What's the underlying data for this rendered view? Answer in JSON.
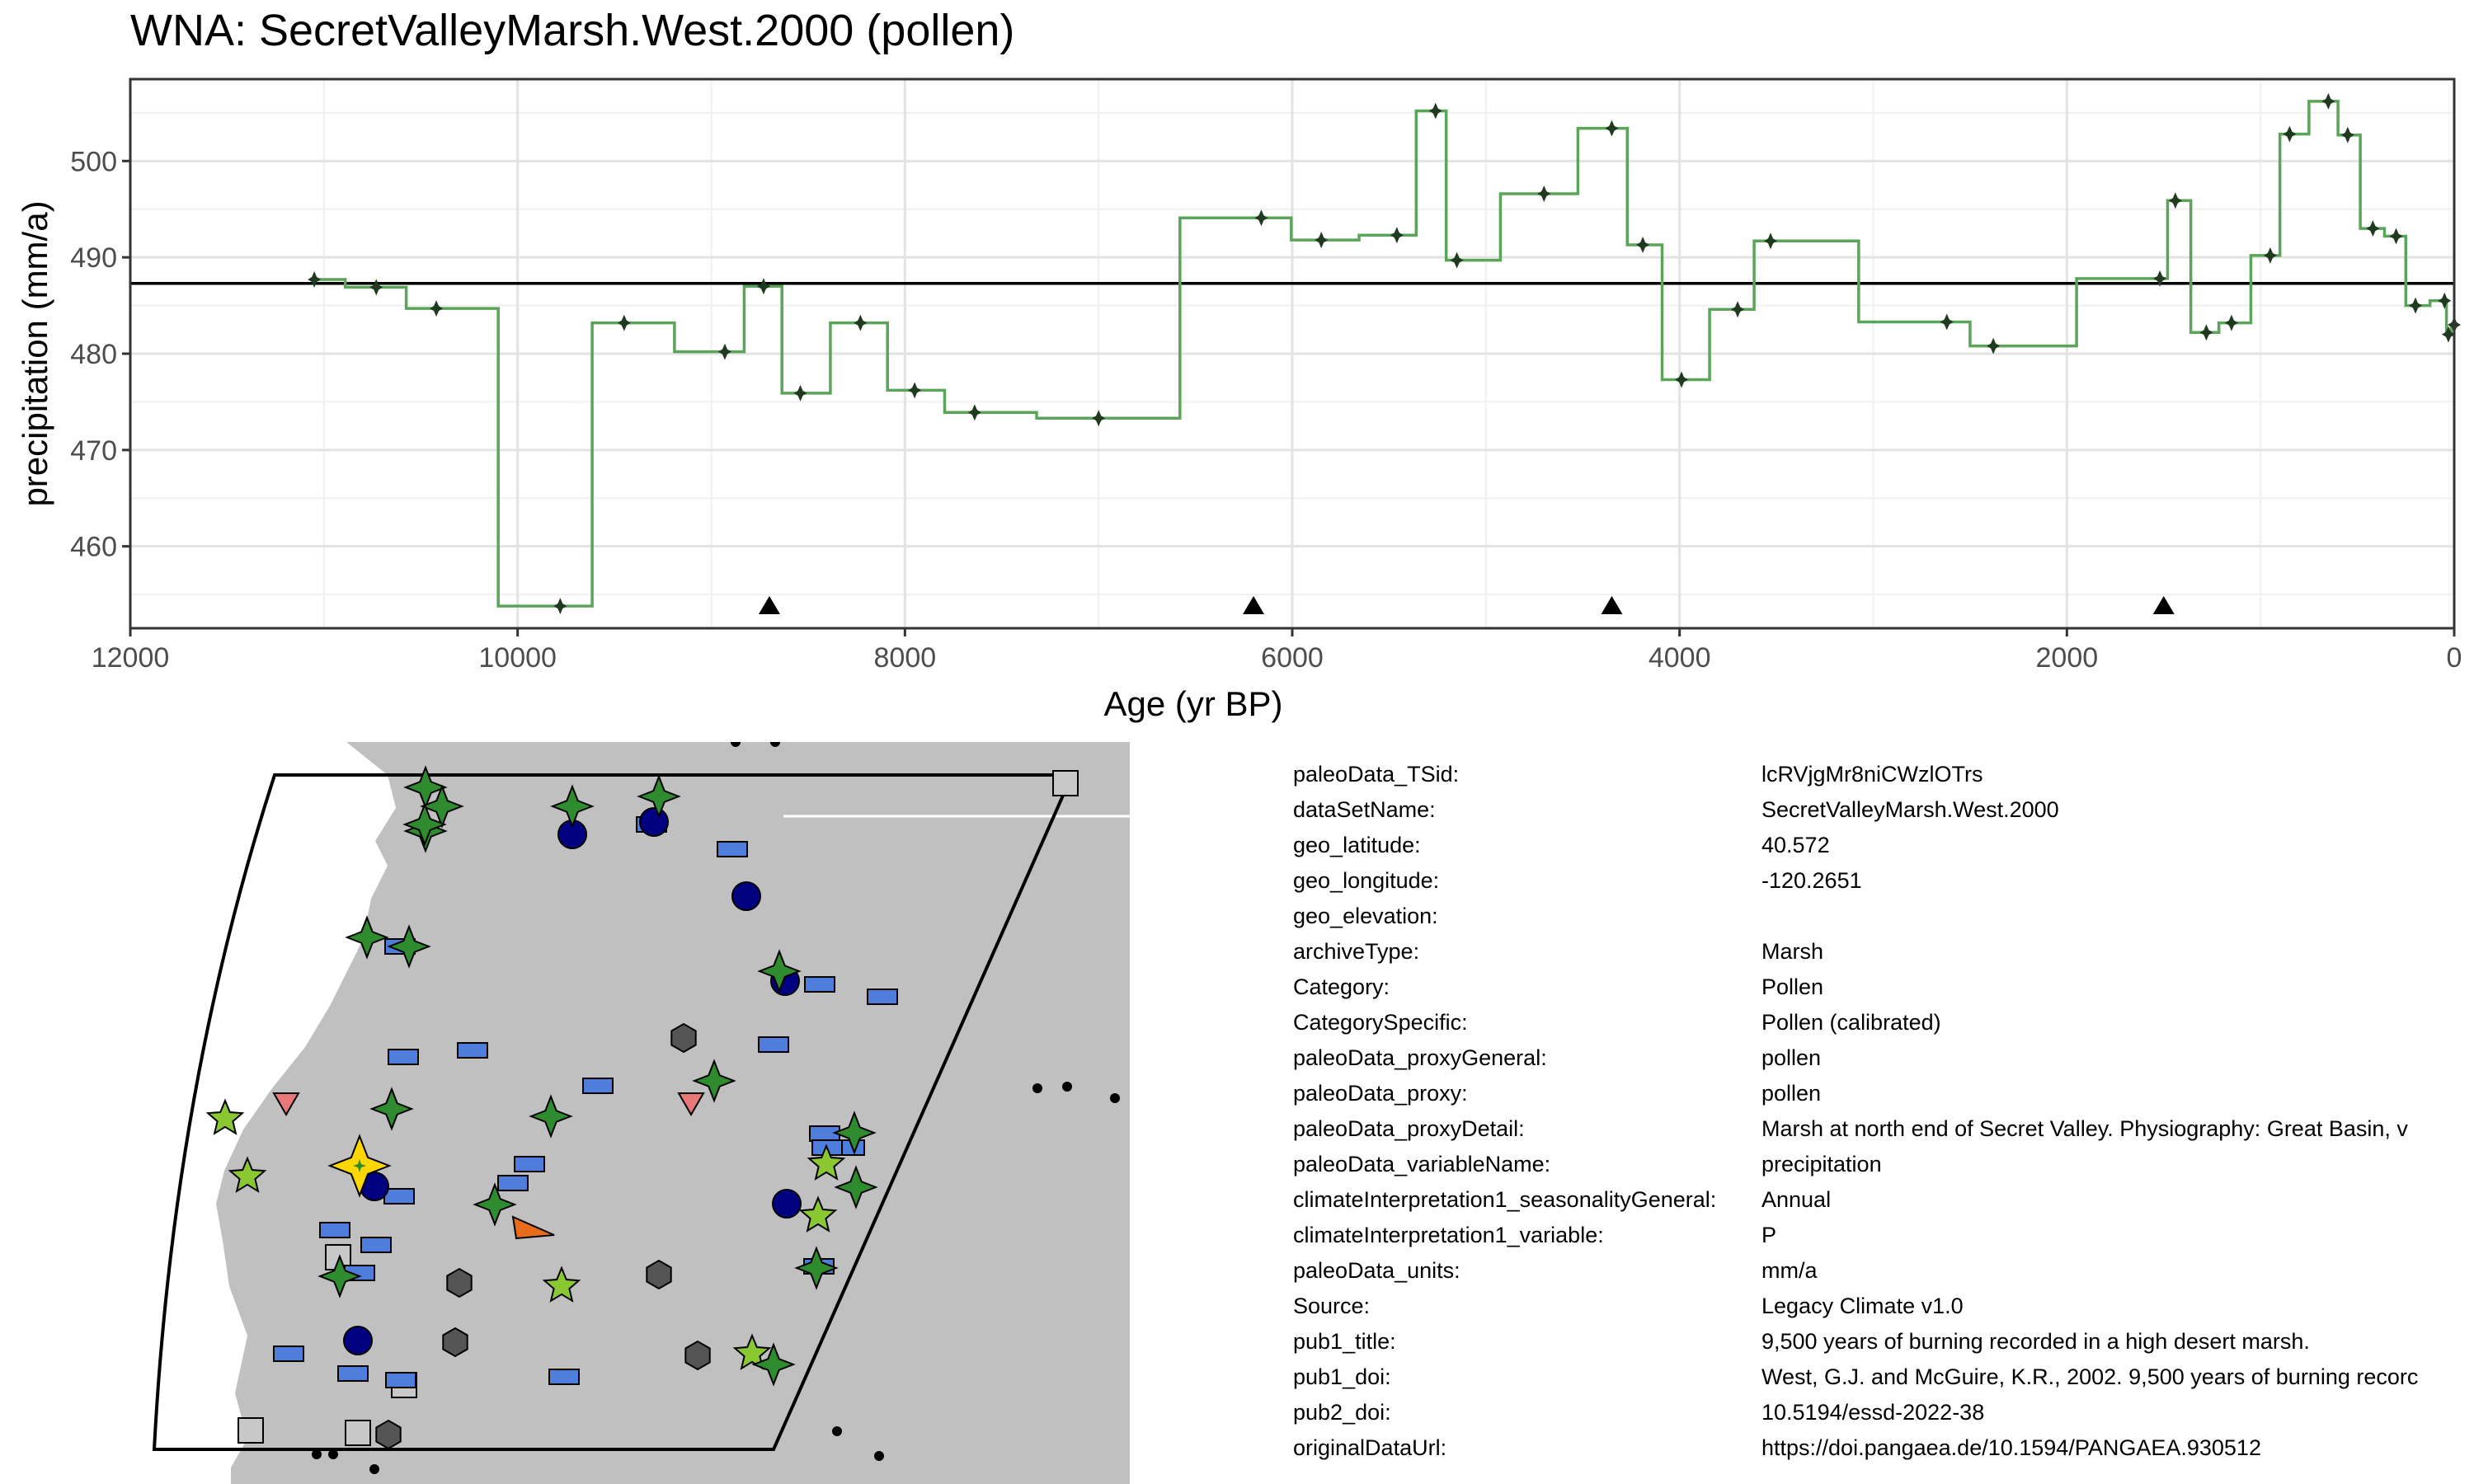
{
  "title": "WNA: SecretValleyMarsh.West.2000 (pollen)",
  "chart_data": {
    "type": "line",
    "step": true,
    "xlabel": "Age (yr BP)",
    "ylabel": "precipitation (mm/a)",
    "xlim": [
      12000,
      0
    ],
    "x_reversed": true,
    "ylim": [
      451.5,
      508.5
    ],
    "xticks": [
      12000,
      10000,
      8000,
      6000,
      4000,
      2000,
      0
    ],
    "yticks": [
      460,
      470,
      480,
      490,
      500
    ],
    "grid": true,
    "mean_line": 487.3,
    "series": [
      {
        "color": "#5aa55a",
        "x": [
          11050,
          10730,
          10420,
          9780,
          9450,
          8930,
          8730,
          8540,
          8230,
          7950,
          7640,
          7000,
          6160,
          5850,
          5460,
          5260,
          5150,
          4700,
          4350,
          4190,
          3990,
          3700,
          3530,
          2620,
          2380,
          1520,
          1440,
          1280,
          1150,
          950,
          850,
          650,
          550,
          420,
          300,
          200,
          50,
          30,
          0
        ],
        "y": [
          487.7,
          486.9,
          484.7,
          453.8,
          483.2,
          480.2,
          487.0,
          475.9,
          483.2,
          476.2,
          473.9,
          473.3,
          494.1,
          491.8,
          492.3,
          505.2,
          489.7,
          496.6,
          503.4,
          491.3,
          477.3,
          484.6,
          491.7,
          483.3,
          480.8,
          487.8,
          495.9,
          482.2,
          483.2,
          490.2,
          502.8,
          506.2,
          502.7,
          493.0,
          492.2,
          485.0,
          485.5,
          482.0,
          483.0
        ]
      }
    ],
    "triangle_markers_x": [
      8700,
      6200,
      4350,
      1500
    ]
  },
  "map": {
    "colors": {
      "land": "#c0c0c0",
      "outline": "#000000",
      "pollen_star": "#2e8b2e",
      "light_star": "#8ac832",
      "circle": "#000080",
      "rect": "#4f7ddc",
      "hexagon": "#555555",
      "triangle": "#e87878",
      "highlight": "#ffd700",
      "orange": "#e86c1a",
      "square": "#c8c8c8"
    }
  },
  "metadata": [
    {
      "key": "paleoData_TSid:",
      "value": "lcRVjgMr8niCWzlOTrs"
    },
    {
      "key": "dataSetName:",
      "value": "SecretValleyMarsh.West.2000"
    },
    {
      "key": "geo_latitude:",
      "value": "40.572"
    },
    {
      "key": "geo_longitude:",
      "value": "-120.2651"
    },
    {
      "key": "geo_elevation:",
      "value": ""
    },
    {
      "key": "archiveType:",
      "value": "Marsh"
    },
    {
      "key": "Category:",
      "value": "Pollen"
    },
    {
      "key": "CategorySpecific:",
      "value": "Pollen (calibrated)"
    },
    {
      "key": "paleoData_proxyGeneral:",
      "value": "pollen"
    },
    {
      "key": "paleoData_proxy:",
      "value": "pollen"
    },
    {
      "key": "paleoData_proxyDetail:",
      "value": "Marsh at north end of Secret Valley. Physiography: Great Basin, v"
    },
    {
      "key": "paleoData_variableName:",
      "value": "precipitation"
    },
    {
      "key": "climateInterpretation1_seasonalityGeneral:",
      "value": "Annual"
    },
    {
      "key": "climateInterpretation1_variable:",
      "value": "P"
    },
    {
      "key": "paleoData_units:",
      "value": "mm/a"
    },
    {
      "key": "Source:",
      "value": "Legacy Climate v1.0"
    },
    {
      "key": "pub1_title:",
      "value": "9,500 years of burning recorded in a high desert marsh."
    },
    {
      "key": "pub1_doi:",
      "value": "West, G.J. and McGuire, K.R., 2002. 9,500 years of burning recorc"
    },
    {
      "key": "pub2_doi:",
      "value": "10.5194/essd-2022-38"
    },
    {
      "key": "originalDataUrl:",
      "value": "https://doi.pangaea.de/10.1594/PANGAEA.930512"
    }
  ]
}
